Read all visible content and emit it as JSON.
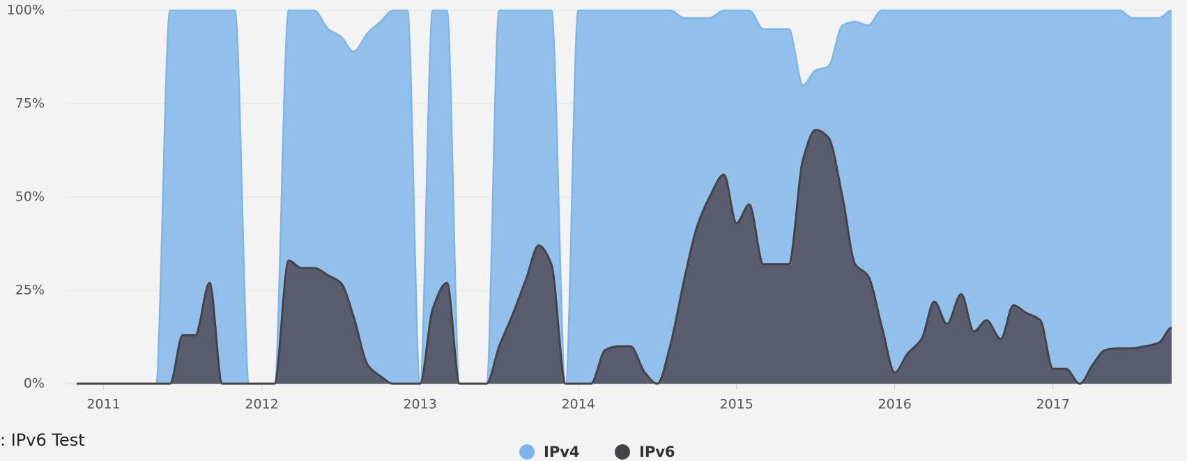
{
  "chart_data": {
    "type": "area",
    "caption": ": IPv6 Test",
    "x": [
      2010.83,
      2010.92,
      2011.0,
      2011.08,
      2011.17,
      2011.25,
      2011.33,
      2011.42,
      2011.5,
      2011.58,
      2011.67,
      2011.75,
      2011.83,
      2011.92,
      2012.0,
      2012.08,
      2012.17,
      2012.25,
      2012.33,
      2012.42,
      2012.5,
      2012.58,
      2012.67,
      2012.75,
      2012.83,
      2012.92,
      2013.0,
      2013.08,
      2013.17,
      2013.25,
      2013.33,
      2013.42,
      2013.5,
      2013.58,
      2013.67,
      2013.75,
      2013.83,
      2013.92,
      2014.0,
      2014.08,
      2014.17,
      2014.25,
      2014.33,
      2014.42,
      2014.5,
      2014.58,
      2014.67,
      2014.75,
      2014.83,
      2014.92,
      2015.0,
      2015.08,
      2015.17,
      2015.25,
      2015.33,
      2015.42,
      2015.5,
      2015.58,
      2015.67,
      2015.75,
      2015.83,
      2015.92,
      2016.0,
      2016.08,
      2016.17,
      2016.25,
      2016.33,
      2016.42,
      2016.5,
      2016.58,
      2016.67,
      2016.75,
      2016.83,
      2016.92,
      2017.0,
      2017.08,
      2017.17,
      2017.25,
      2017.33,
      2017.42,
      2017.5,
      2017.58,
      2017.67,
      2017.75
    ],
    "series": [
      {
        "name": "IPv4",
        "color": "#7cb5ec",
        "fill": "#93c0ea",
        "values": [
          0,
          0,
          0,
          0,
          0,
          0,
          0,
          100,
          100,
          100,
          100,
          100,
          100,
          0,
          0,
          0,
          100,
          100,
          100,
          95,
          93,
          89,
          94,
          97,
          100,
          100,
          0,
          100,
          100,
          0,
          0,
          0,
          100,
          100,
          100,
          100,
          100,
          0,
          100,
          100,
          100,
          100,
          100,
          100,
          100,
          100,
          98,
          98,
          98,
          100,
          100,
          100,
          95,
          95,
          95,
          80,
          84,
          85,
          96,
          97,
          96,
          100,
          100,
          100,
          100,
          100,
          100,
          100,
          100,
          100,
          100,
          100,
          100,
          100,
          100,
          100,
          100,
          100,
          100,
          100,
          98,
          98,
          98,
          100
        ]
      },
      {
        "name": "IPv6",
        "color": "#434348",
        "fill": "#5a5d6e",
        "values": [
          0,
          0,
          0,
          0,
          0,
          0,
          0,
          0,
          13,
          13,
          27,
          0,
          0,
          0,
          0,
          0,
          33,
          31,
          31,
          29,
          27,
          18,
          5,
          2,
          0,
          0,
          0,
          20,
          27,
          0,
          0,
          0,
          10,
          18,
          28,
          37,
          32,
          0,
          0,
          0,
          9,
          10,
          10,
          3,
          0,
          10,
          28,
          42,
          50,
          56,
          43,
          48,
          32,
          32,
          32,
          60,
          68,
          66,
          50,
          32,
          29,
          15,
          3,
          8,
          12,
          22,
          16,
          24,
          14,
          17,
          12,
          21,
          19,
          17,
          4,
          4,
          0,
          5,
          9,
          9.5,
          9.5,
          10,
          11,
          15
        ]
      }
    ],
    "xlim": [
      2010.83,
      2017.75
    ],
    "xticks": [
      2011,
      2012,
      2013,
      2014,
      2015,
      2016,
      2017
    ],
    "ylim": [
      0,
      100
    ],
    "yticks": [
      {
        "value": 0,
        "label": "0%"
      },
      {
        "value": 25,
        "label": "25%"
      },
      {
        "value": 50,
        "label": "50%"
      },
      {
        "value": 75,
        "label": "75%"
      },
      {
        "value": 100,
        "label": "100%"
      }
    ],
    "grid": true,
    "legend": "bottom"
  }
}
